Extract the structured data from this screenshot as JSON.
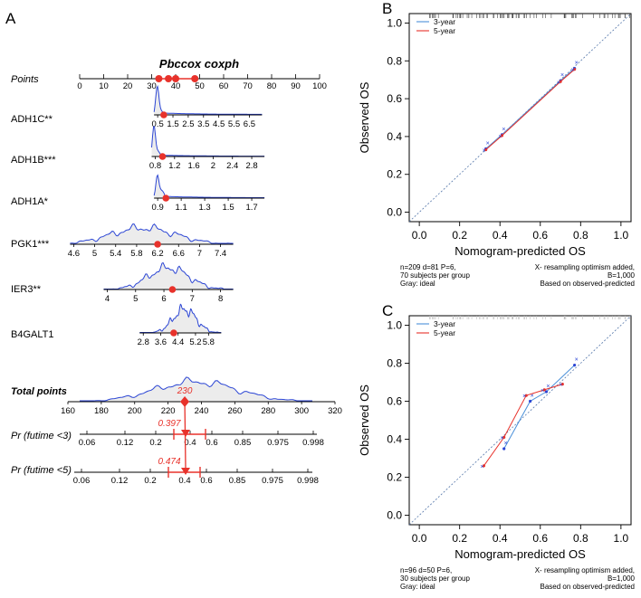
{
  "colors": {
    "red": "#e8322b",
    "blue": "#2b45d4",
    "lightblue": "#4a90d9",
    "density_fill": "#ececec"
  },
  "panel_A": {
    "letter": "A",
    "title": "Pbccox coxph",
    "rows": [
      {
        "label": "Points",
        "style": "italic"
      },
      {
        "label": "ADH1C**",
        "style": "normal"
      },
      {
        "label": "ADH1B***",
        "style": "normal"
      },
      {
        "label": "ADH1A*",
        "style": "normal"
      },
      {
        "label": "PGK1***",
        "style": "normal"
      },
      {
        "label": "IER3**",
        "style": "normal"
      },
      {
        "label": "B4GALT1",
        "style": "normal"
      },
      {
        "label": "Total points",
        "style": "bold"
      },
      {
        "label": "Pr (futime <3)",
        "style": "italic"
      },
      {
        "label": "Pr (futime <5)",
        "style": "italic"
      }
    ],
    "total_points_value": "230",
    "pr3_value": "0.397",
    "pr5_value": "0.474"
  },
  "chart_data": [
    {
      "type": "nomogram",
      "title": "Pbccox coxph",
      "scales": [
        {
          "name": "Points",
          "ticks": [
            "0",
            "10",
            "20",
            "30",
            "40",
            "50",
            "60",
            "70",
            "80",
            "90",
            "100"
          ],
          "tick_values": [
            0,
            10,
            20,
            30,
            40,
            50,
            60,
            70,
            80,
            90,
            100
          ],
          "points_range": [
            0,
            100
          ],
          "markers": [
            33,
            37,
            40,
            48
          ]
        },
        {
          "name": "ADH1C**",
          "ticks": [
            "0.5",
            "1.5",
            "2.5",
            "3.5",
            "4.5",
            "5.5",
            "6.5"
          ],
          "tick_values": [
            0.5,
            1.5,
            2.5,
            3.5,
            4.5,
            5.5,
            6.5
          ],
          "points_range": [
            31,
            76
          ],
          "marker": 0.9
        },
        {
          "name": "ADH1B***",
          "ticks": [
            "0.8",
            "1.2",
            "1.6",
            "2",
            "2.4",
            "2.8"
          ],
          "tick_values": [
            0.8,
            1.2,
            1.6,
            2.0,
            2.4,
            2.8
          ],
          "points_range": [
            30,
            77
          ],
          "marker": 0.95
        },
        {
          "name": "ADH1A*",
          "ticks": [
            "0.9",
            "1.1",
            "1.3",
            "1.5",
            "1.7"
          ],
          "tick_values": [
            0.9,
            1.1,
            1.3,
            1.5,
            1.7
          ],
          "points_range": [
            31,
            77
          ],
          "marker": 0.97
        },
        {
          "name": "PGK1***",
          "ticks": [
            "4.6",
            "5",
            "5.4",
            "5.8",
            "6.2",
            "6.6",
            "7",
            "7.4"
          ],
          "tick_values": [
            4.6,
            5.0,
            5.4,
            5.8,
            6.2,
            6.6,
            7.0,
            7.4
          ],
          "points_range": [
            -4,
            64
          ],
          "marker": 6.2
        },
        {
          "name": "IER3**",
          "ticks": [
            "4",
            "5",
            "6",
            "7",
            "8"
          ],
          "tick_values": [
            4,
            5,
            6,
            7,
            8
          ],
          "points_range": [
            10,
            64
          ],
          "marker": 6.3
        },
        {
          "name": "B4GALT1",
          "ticks": [
            "2.8",
            "3.6",
            "4.4",
            "5.2",
            "5.8"
          ],
          "tick_values": [
            2.8,
            3.6,
            4.4,
            5.2,
            5.8
          ],
          "points_range": [
            25,
            59
          ],
          "marker": 4.2
        },
        {
          "name": "Total points",
          "ticks": [
            "160",
            "180",
            "200",
            "220",
            "240",
            "260",
            "280",
            "300",
            "320"
          ],
          "tick_values": [
            160,
            180,
            200,
            220,
            240,
            260,
            280,
            300,
            320
          ],
          "marker": 230
        },
        {
          "name": "Pr (futime <3)",
          "ticks": [
            "0.06",
            "0.12",
            "0.2",
            "0.4",
            "0.6",
            "0.85",
            "0.975",
            "0.998"
          ],
          "tick_values": [
            0.06,
            0.12,
            0.2,
            0.4,
            0.6,
            0.85,
            0.975,
            0.998
          ],
          "marker": 0.397,
          "ci": [
            0.33,
            0.55
          ]
        },
        {
          "name": "Pr (futime <5)",
          "ticks": [
            "0.06",
            "0.12",
            "0.2",
            "0.4",
            "0.6",
            "0.85",
            "0.975",
            "0.998"
          ],
          "tick_values": [
            0.06,
            0.12,
            0.2,
            0.4,
            0.6,
            0.85,
            0.975,
            0.998
          ],
          "marker": 0.474,
          "ci": [
            0.33,
            0.56
          ]
        }
      ]
    },
    {
      "type": "line",
      "panel": "B",
      "title": "",
      "xlabel": "Nomogram-predicted OS",
      "ylabel": "Observed OS",
      "xlim": [
        -0.05,
        1.05
      ],
      "ylim": [
        -0.05,
        1.05
      ],
      "xticks": [
        "0.0",
        "0.2",
        "0.4",
        "0.6",
        "0.8",
        "1.0"
      ],
      "yticks": [
        "0.0",
        "0.2",
        "0.4",
        "0.6",
        "0.8",
        "1.0"
      ],
      "legend": "top-left",
      "series": [
        {
          "name": "3-year",
          "color": "#4a90d9",
          "x": [
            0.33,
            0.41,
            0.7,
            0.77
          ],
          "y": [
            0.335,
            0.41,
            0.695,
            0.76
          ]
        },
        {
          "name": "5-year",
          "color": "#e8322b",
          "x": [
            0.33,
            0.41,
            0.7,
            0.77
          ],
          "y": [
            0.33,
            0.405,
            0.69,
            0.755
          ]
        }
      ],
      "ideal_line": true,
      "notes_left": [
        "n=209 d=81 P=6,",
        "70 subjects per group",
        "Gray: ideal"
      ],
      "notes_right": [
        "X- resampling optimism added,",
        "B=1,000",
        "Based on observed-predicted"
      ]
    },
    {
      "type": "line",
      "panel": "C",
      "title": "",
      "xlabel": "Nomogram-predicted OS",
      "ylabel": "Observed OS",
      "xlim": [
        -0.05,
        1.05
      ],
      "ylim": [
        -0.05,
        1.05
      ],
      "xticks": [
        "0.0",
        "0.2",
        "0.4",
        "0.6",
        "0.8",
        "1.0"
      ],
      "yticks": [
        "0.0",
        "0.2",
        "0.4",
        "0.6",
        "0.8",
        "1.0"
      ],
      "legend": "top-left",
      "series": [
        {
          "name": "3-year",
          "color": "#4a90d9",
          "x": [
            0.42,
            0.55,
            0.63,
            0.77
          ],
          "y": [
            0.35,
            0.6,
            0.65,
            0.79
          ]
        },
        {
          "name": "5-year",
          "color": "#e8322b",
          "x": [
            0.32,
            0.42,
            0.53,
            0.62,
            0.71
          ],
          "y": [
            0.26,
            0.41,
            0.63,
            0.66,
            0.69
          ]
        }
      ],
      "ideal_line": true,
      "notes_left": [
        "n=96 d=50 P=6,",
        "30 subjects per group",
        "Gray: ideal"
      ],
      "notes_right": [
        "X- resampling optimism added,",
        "B=1,000",
        "Based on observed-predicted"
      ]
    }
  ],
  "panel_B": {
    "letter": "B"
  },
  "panel_C": {
    "letter": "C"
  }
}
